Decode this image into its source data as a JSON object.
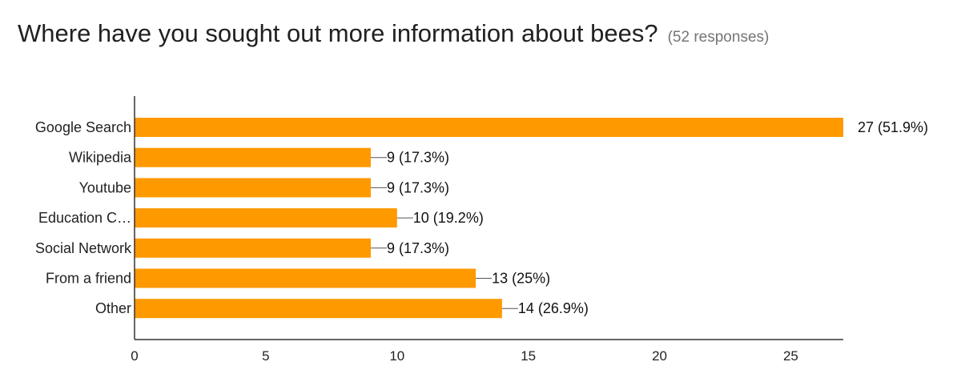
{
  "header": {
    "title": "Where have you sought out more information about bees?",
    "subtitle": "(52 responses)"
  },
  "chart_data": {
    "type": "bar",
    "orientation": "horizontal",
    "title": "Where have you sought out more information about bees?",
    "subtitle": "(52 responses)",
    "categories": [
      "Google Search",
      "Wikipedia",
      "Youtube",
      "Education C…",
      "Social Network",
      "From a friend",
      "Other"
    ],
    "values": [
      27,
      9,
      9,
      10,
      9,
      13,
      14
    ],
    "data_labels": [
      "27 (51.9%)",
      "9 (17.3%)",
      "9 (17.3%)",
      "10 (19.2%)",
      "9 (17.3%)",
      "13 (25%)",
      "14 (26.9%)"
    ],
    "xlim": [
      0,
      27
    ],
    "xticks": [
      0,
      5,
      10,
      15,
      20,
      25
    ],
    "xlabel": "",
    "ylabel": "",
    "bar_color": "#ff9900",
    "grid": false
  }
}
